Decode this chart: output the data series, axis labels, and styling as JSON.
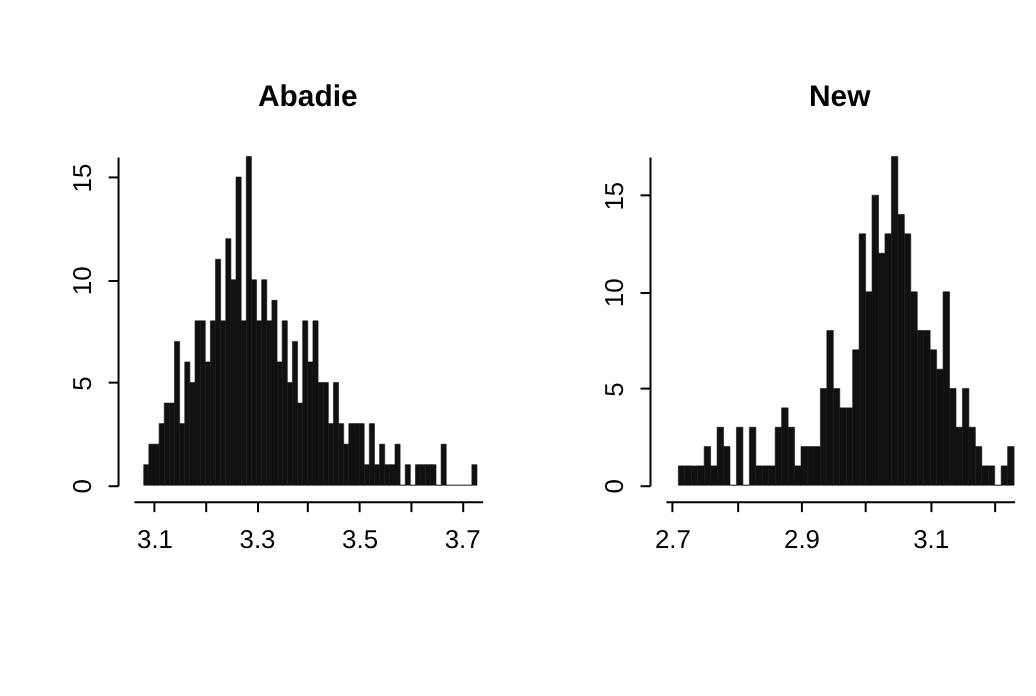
{
  "chart_data": [
    {
      "type": "histogram",
      "title": "Abadie",
      "color": "#111111",
      "bins": [
        3.08,
        3.09,
        3.1,
        3.11,
        3.12,
        3.13,
        3.14,
        3.15,
        3.16,
        3.17,
        3.18,
        3.19,
        3.2,
        3.21,
        3.22,
        3.23,
        3.24,
        3.25,
        3.26,
        3.27,
        3.28,
        3.29,
        3.3,
        3.31,
        3.32,
        3.33,
        3.34,
        3.35,
        3.36,
        3.37,
        3.38,
        3.39,
        3.4,
        3.41,
        3.42,
        3.43,
        3.44,
        3.45,
        3.46,
        3.47,
        3.48,
        3.49,
        3.5,
        3.51,
        3.52,
        3.53,
        3.54,
        3.55,
        3.56,
        3.57,
        3.58,
        3.59,
        3.6,
        3.61,
        3.62,
        3.63,
        3.64,
        3.65,
        3.66,
        3.67,
        3.68,
        3.69,
        3.7,
        3.71,
        3.72,
        3.73
      ],
      "values": [
        1,
        2,
        2,
        3,
        4,
        4,
        7,
        3,
        6,
        5,
        8,
        8,
        6,
        8,
        11,
        8,
        12,
        10,
        15,
        8,
        16,
        10,
        8,
        10,
        8,
        9,
        6,
        8,
        5,
        7,
        4,
        8,
        6,
        8,
        5,
        5,
        3,
        5,
        3,
        2,
        3,
        3,
        3,
        1,
        3,
        1,
        2,
        1,
        1,
        2,
        0,
        1,
        0,
        1,
        1,
        1,
        1,
        0,
        2,
        0,
        0,
        0,
        0,
        0,
        1
      ],
      "xlim": [
        3.06,
        3.74
      ],
      "xticks": [
        3.1,
        {
          "value": 3.2,
          "label": null
        },
        3.3,
        {
          "value": 3.4,
          "label": null
        },
        3.5,
        {
          "value": 3.6,
          "label": null
        },
        3.7
      ],
      "ylim": [
        0,
        16
      ],
      "yticks": [
        0,
        5,
        10,
        15
      ],
      "grid": false
    },
    {
      "type": "histogram",
      "title": "New",
      "color": "#111111",
      "bins": [
        2.71,
        2.72,
        2.73,
        2.74,
        2.75,
        2.76,
        2.77,
        2.78,
        2.79,
        2.8,
        2.81,
        2.82,
        2.83,
        2.84,
        2.85,
        2.86,
        2.87,
        2.88,
        2.89,
        2.9,
        2.91,
        2.92,
        2.93,
        2.94,
        2.95,
        2.96,
        2.97,
        2.98,
        2.99,
        3.0,
        3.01,
        3.02,
        3.03,
        3.04,
        3.05,
        3.06,
        3.07,
        3.08,
        3.09,
        3.1,
        3.11,
        3.12,
        3.13,
        3.14,
        3.15,
        3.16,
        3.17,
        3.18,
        3.19,
        3.2,
        3.21,
        3.22,
        3.23
      ],
      "values": [
        1,
        1,
        1,
        1,
        2,
        1,
        3,
        2,
        0,
        3,
        0,
        3,
        1,
        1,
        1,
        3,
        4,
        3,
        1,
        2,
        2,
        2,
        5,
        8,
        5,
        4,
        4,
        7,
        13,
        10,
        15,
        12,
        13,
        17,
        14,
        13,
        10,
        8,
        8,
        7,
        6,
        10,
        5,
        3,
        5,
        3,
        2,
        1,
        1,
        0,
        1,
        2
      ],
      "xlim": [
        2.69,
        3.23
      ],
      "xticks": [
        2.7,
        {
          "value": 2.8,
          "label": null
        },
        2.9,
        {
          "value": 3.0,
          "label": null
        },
        3.1,
        {
          "value": 3.2,
          "label": null
        }
      ],
      "ylim": [
        0,
        17
      ],
      "yticks": [
        0,
        5,
        10,
        15
      ],
      "grid": false
    }
  ]
}
